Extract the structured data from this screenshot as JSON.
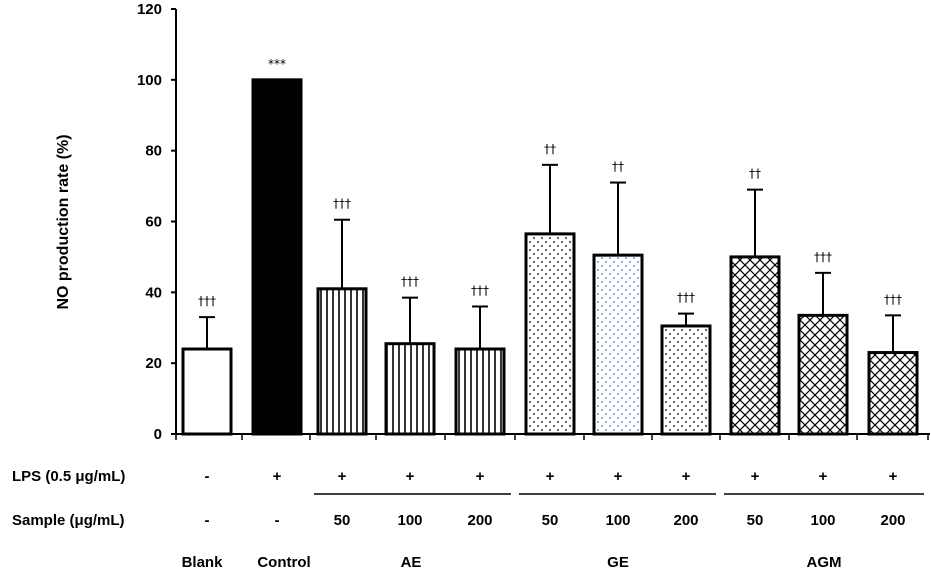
{
  "chart_data": {
    "type": "bar",
    "ylabel": "NO production rate (%)",
    "ylim": [
      0,
      120
    ],
    "yticks": [
      0,
      20,
      40,
      60,
      80,
      100,
      120
    ],
    "values": [
      24,
      100,
      41,
      25.5,
      24,
      56.5,
      50.5,
      30.5,
      50,
      33.5,
      23
    ],
    "errors": [
      9,
      0,
      19.5,
      13,
      12,
      19.5,
      20.5,
      3.5,
      19,
      12,
      10.5
    ],
    "significance": [
      "†††",
      "***",
      "†††",
      "†††",
      "†††",
      "††",
      "††",
      "†††",
      "††",
      "†††",
      "†††"
    ],
    "bar_styles": [
      "blank",
      "solid",
      "vertical",
      "vertical",
      "vertical",
      "dots",
      "dots-blue",
      "dots",
      "crosshatch",
      "crosshatch",
      "crosshatch"
    ],
    "lps_label": "LPS (0.5 μg/mL)",
    "lps_values": [
      "-",
      "+",
      "+",
      "+",
      "+",
      "+",
      "+",
      "+",
      "+",
      "+",
      "+"
    ],
    "sample_label": "Sample (μg/mL)",
    "sample_values": [
      "-",
      "-",
      "50",
      "100",
      "200",
      "50",
      "100",
      "200",
      "50",
      "100",
      "200"
    ],
    "groups": [
      {
        "name": "Blank",
        "start": 0,
        "end": 0,
        "underline": false
      },
      {
        "name": "Control",
        "start": 1,
        "end": 1,
        "underline": false
      },
      {
        "name": "AE",
        "start": 2,
        "end": 4,
        "underline": true
      },
      {
        "name": "GE",
        "start": 5,
        "end": 7,
        "underline": true
      },
      {
        "name": "AGM",
        "start": 8,
        "end": 10,
        "underline": true
      }
    ]
  }
}
